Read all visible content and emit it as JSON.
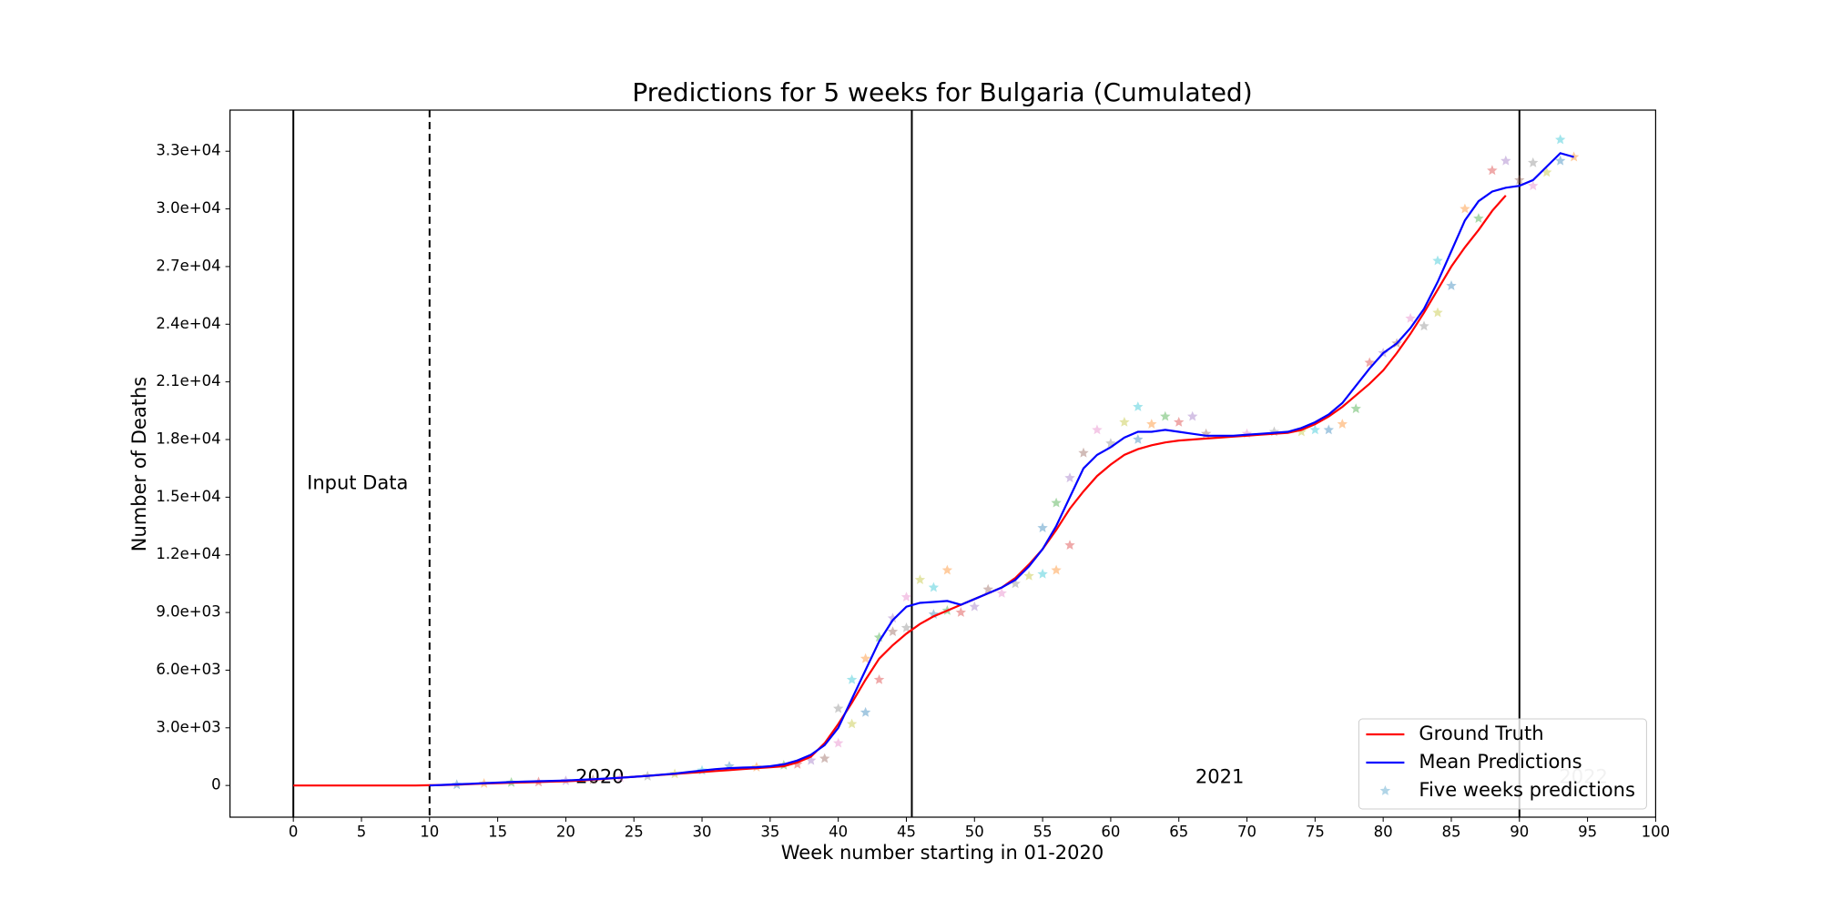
{
  "chart_data": {
    "type": "line",
    "title": "Predictions for 5 weeks for Bulgaria (Cumulated)",
    "x_label": "Week number starting in 01-2020",
    "y_label": "Number of Deaths",
    "xlim": [
      -4.65,
      100
    ],
    "ylim": [
      -1650,
      35140
    ],
    "xticks": [
      0,
      5,
      10,
      15,
      20,
      25,
      30,
      35,
      40,
      45,
      50,
      55,
      60,
      65,
      70,
      75,
      80,
      85,
      90,
      95,
      100
    ],
    "yticks": [
      0,
      {
        "value": 3000,
        "label": "3.0e+03"
      },
      {
        "value": 6000,
        "label": "6.0e+03"
      },
      {
        "value": 9000,
        "label": "9.0e+03"
      },
      {
        "value": 12000,
        "label": "1.2e+04"
      },
      {
        "value": 15000,
        "label": "1.5e+04"
      },
      {
        "value": 18000,
        "label": "1.8e+04"
      },
      {
        "value": 21000,
        "label": "2.1e+04"
      },
      {
        "value": 24000,
        "label": "2.4e+04"
      },
      {
        "value": 27000,
        "label": "2.7e+04"
      },
      {
        "value": 30000,
        "label": "3.0e+04"
      },
      {
        "value": 33000,
        "label": "3.3e+04"
      }
    ],
    "grid": false,
    "legend": "lower right",
    "vlines": [
      {
        "x": 0,
        "style": "solid"
      },
      {
        "x": 10,
        "style": "dashed"
      },
      {
        "x": 45.4,
        "style": "solid"
      },
      {
        "x": 90,
        "style": "solid"
      }
    ],
    "annotations": [
      {
        "text": "Input Data",
        "color": "#000000"
      },
      {
        "text": "2020",
        "color": "#000000"
      },
      {
        "text": "2021",
        "color": "#000000"
      },
      {
        "text": "2022",
        "color": "#bbbbbb"
      }
    ],
    "series": [
      {
        "name": "Ground Truth",
        "type": "line",
        "color": "#ff0000",
        "x": [
          0,
          1,
          2,
          3,
          4,
          5,
          6,
          7,
          8,
          9,
          10,
          11,
          12,
          13,
          14,
          15,
          16,
          17,
          18,
          19,
          20,
          21,
          22,
          23,
          24,
          25,
          26,
          27,
          28,
          29,
          30,
          31,
          32,
          33,
          34,
          35,
          36,
          37,
          38,
          39,
          40,
          41,
          42,
          43,
          44,
          45,
          46,
          47,
          48,
          49,
          50,
          51,
          52,
          53,
          54,
          55,
          56,
          57,
          58,
          59,
          60,
          61,
          62,
          63,
          64,
          65,
          66,
          67,
          68,
          69,
          70,
          71,
          72,
          73,
          74,
          75,
          76,
          77,
          78,
          79,
          80,
          81,
          82,
          83,
          84,
          85,
          86,
          87,
          88,
          89
        ],
        "values": [
          0,
          0,
          0,
          0,
          0,
          0,
          0,
          0,
          0,
          0,
          10,
          20,
          40,
          70,
          100,
          120,
          140,
          160,
          180,
          200,
          220,
          250,
          300,
          350,
          400,
          450,
          500,
          550,
          600,
          650,
          700,
          750,
          800,
          850,
          900,
          950,
          1000,
          1200,
          1500,
          2200,
          3200,
          4300,
          5500,
          6600,
          7300,
          7900,
          8400,
          8800,
          9100,
          9400,
          9700,
          10000,
          10300,
          10800,
          11500,
          12300,
          13300,
          14400,
          15300,
          16100,
          16700,
          17200,
          17500,
          17700,
          17850,
          17950,
          18000,
          18050,
          18100,
          18150,
          18200,
          18250,
          18300,
          18350,
          18500,
          18800,
          19200,
          19700,
          20300,
          20900,
          21600,
          22500,
          23500,
          24600,
          25800,
          27000,
          28000,
          28900,
          29900,
          30700
        ]
      },
      {
        "name": "Mean Predictions",
        "type": "line",
        "color": "#0000ff",
        "x": [
          10,
          11,
          12,
          13,
          14,
          15,
          16,
          17,
          18,
          19,
          20,
          21,
          22,
          23,
          24,
          25,
          26,
          27,
          28,
          29,
          30,
          31,
          32,
          33,
          34,
          35,
          36,
          37,
          38,
          39,
          40,
          41,
          42,
          43,
          44,
          45,
          46,
          47,
          48,
          49,
          50,
          51,
          52,
          53,
          54,
          55,
          56,
          57,
          58,
          59,
          60,
          61,
          62,
          63,
          64,
          65,
          66,
          67,
          68,
          69,
          70,
          71,
          72,
          73,
          74,
          75,
          76,
          77,
          78,
          79,
          80,
          81,
          82,
          83,
          84,
          85,
          86,
          87,
          88,
          89,
          90,
          91,
          92,
          93,
          94
        ],
        "values": [
          0,
          30,
          60,
          90,
          120,
          150,
          180,
          200,
          220,
          240,
          260,
          290,
          320,
          360,
          400,
          450,
          500,
          560,
          620,
          700,
          780,
          850,
          900,
          930,
          950,
          1000,
          1100,
          1300,
          1600,
          2100,
          3000,
          4500,
          6000,
          7500,
          8600,
          9300,
          9500,
          9550,
          9600,
          9400,
          9700,
          10000,
          10300,
          10700,
          11400,
          12300,
          13500,
          15000,
          16500,
          17200,
          17600,
          18100,
          18400,
          18400,
          18500,
          18400,
          18300,
          18200,
          18200,
          18200,
          18250,
          18300,
          18350,
          18400,
          18600,
          18900,
          19300,
          19900,
          20800,
          21700,
          22500,
          23000,
          23800,
          24800,
          26200,
          27800,
          29400,
          30400,
          30900,
          31100,
          31200,
          31500,
          32200,
          32900,
          32700
        ]
      },
      {
        "name": "Five weeks predictions",
        "type": "scatter",
        "color": "#9ecae1",
        "colors": [
          "#1f77b4",
          "#ff7f0e",
          "#2ca02c",
          "#d62728",
          "#9467bd",
          "#8c564b",
          "#e377c2",
          "#7f7f7f",
          "#bcbd22",
          "#17becf"
        ],
        "x": [
          12,
          14,
          16,
          18,
          20,
          22,
          24,
          26,
          28,
          30,
          32,
          34,
          36,
          37,
          38,
          39,
          40,
          40,
          41,
          41,
          42,
          42,
          43,
          43,
          44,
          44,
          45,
          45,
          46,
          47,
          47,
          48,
          48,
          49,
          50,
          51,
          52,
          53,
          54,
          55,
          55,
          56,
          56,
          57,
          57,
          58,
          59,
          60,
          61,
          62,
          62,
          63,
          64,
          65,
          66,
          67,
          70,
          72,
          74,
          75,
          76,
          77,
          78,
          79,
          80,
          81,
          82,
          83,
          84,
          84,
          85,
          86,
          87,
          88,
          89,
          90,
          91,
          91,
          92,
          93,
          93,
          94
        ],
        "values": [
          40,
          100,
          150,
          180,
          240,
          300,
          400,
          480,
          600,
          780,
          1000,
          950,
          1050,
          1100,
          1300,
          1400,
          2200,
          4000,
          3200,
          5500,
          3800,
          6600,
          7700,
          5500,
          8700,
          8000,
          9800,
          8200,
          10700,
          10300,
          8900,
          11200,
          9100,
          9000,
          9300,
          10200,
          10000,
          10500,
          10900,
          11000,
          13400,
          11200,
          14700,
          12500,
          16000,
          17300,
          18500,
          17800,
          18900,
          19700,
          18000,
          18800,
          19200,
          18900,
          19200,
          18300,
          18300,
          18400,
          18400,
          18500,
          18500,
          18800,
          19600,
          22000,
          22500,
          23000,
          24300,
          23900,
          24600,
          27300,
          26000,
          30000,
          29500,
          32000,
          32500,
          31500,
          31200,
          32400,
          31900,
          33600,
          32500,
          32700
        ]
      }
    ]
  }
}
